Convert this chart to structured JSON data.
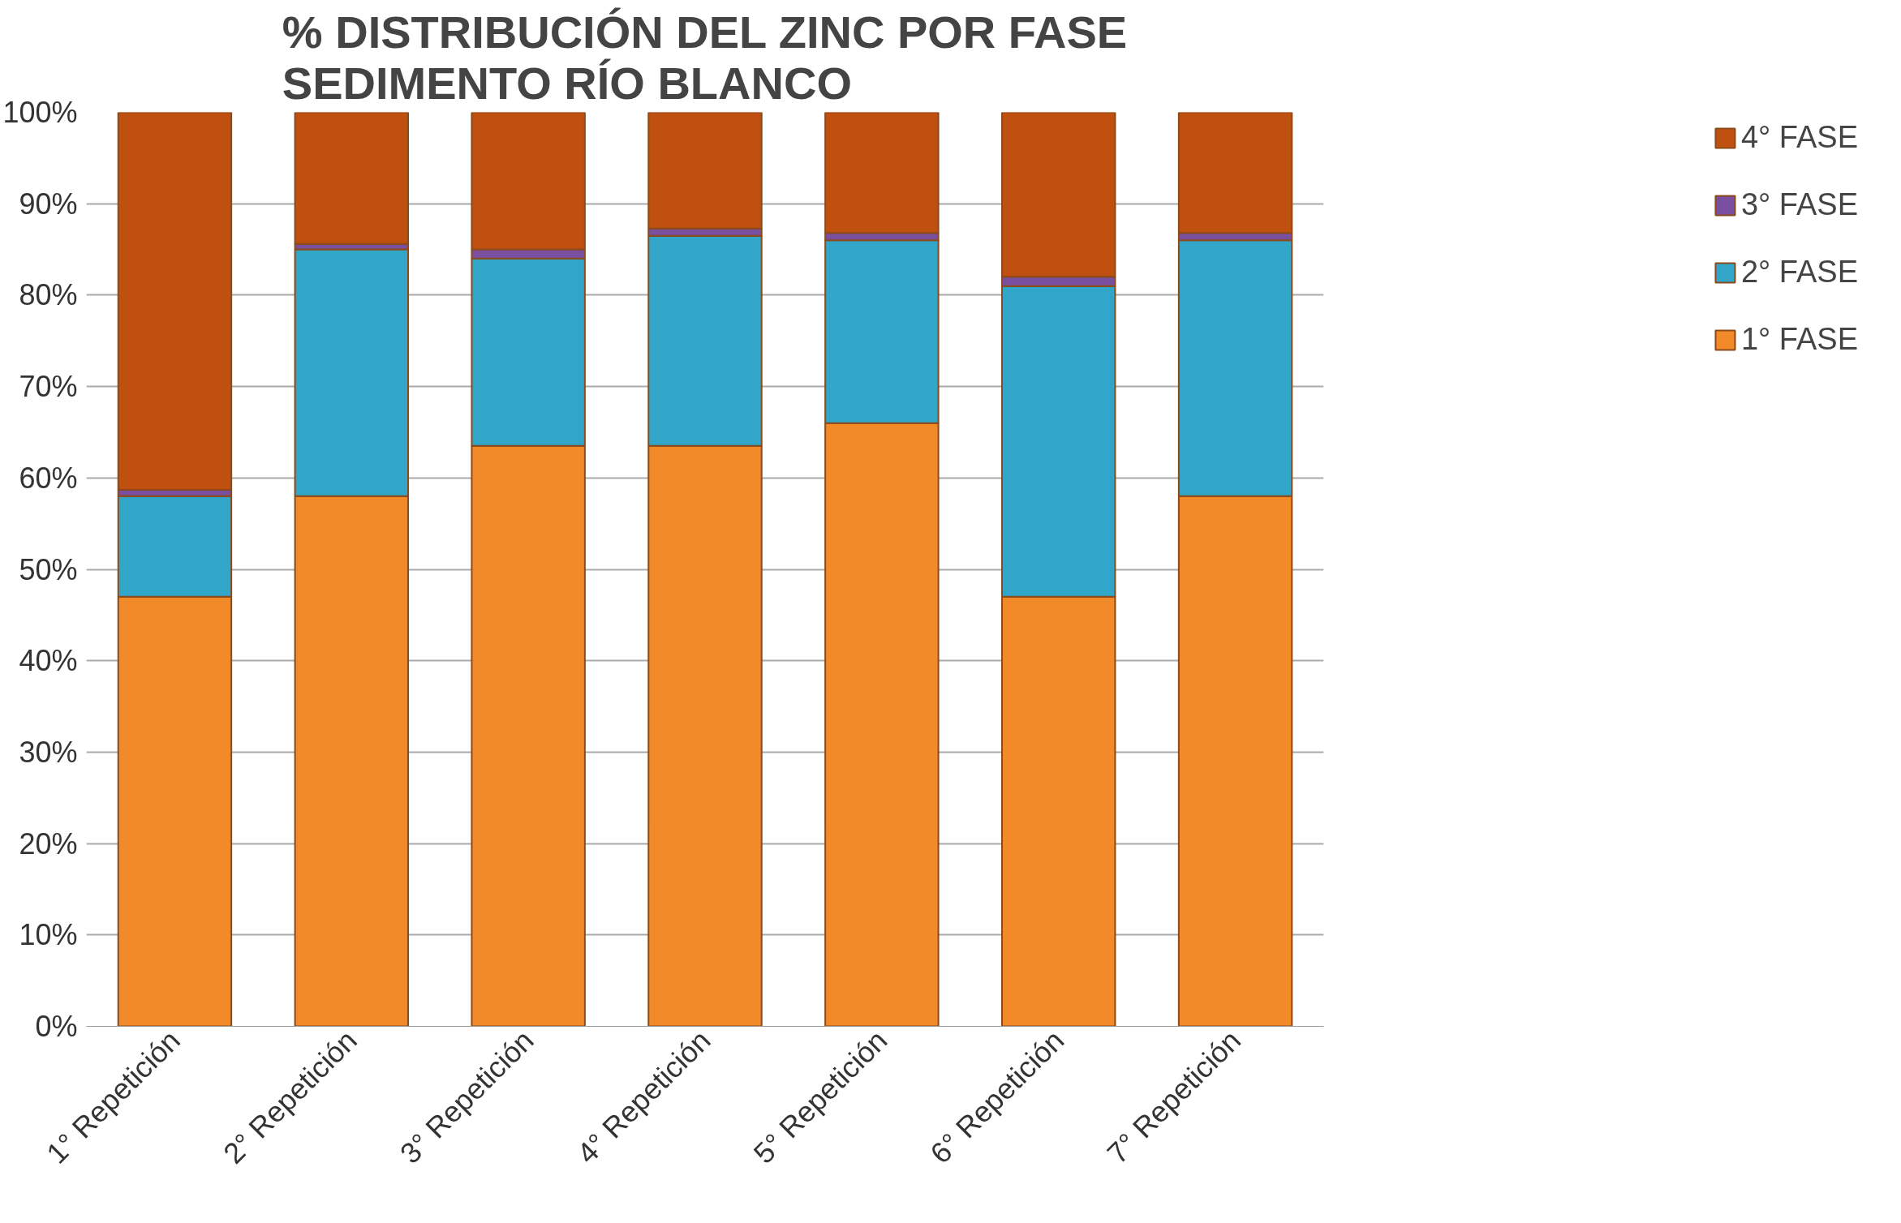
{
  "chart_data": {
    "type": "bar",
    "stacked": true,
    "title": "% DISTRIBUCIÓN DEL ZINC POR FASE\nSEDIMENTO RÍO BLANCO",
    "categories": [
      "1° Repetición",
      "2° Repetición",
      "3° Repetición",
      "4° Repetición",
      "5° Repetición",
      "6° Repetición",
      "7° Repetición"
    ],
    "series": [
      {
        "name": "1° FASE",
        "color": "#f28a2a",
        "values": [
          47,
          58,
          63.5,
          63.5,
          66,
          47,
          58
        ]
      },
      {
        "name": "2° FASE",
        "color": "#31a6c8",
        "values": [
          11,
          27,
          20.5,
          23,
          20,
          34,
          28
        ]
      },
      {
        "name": "3° FASE",
        "color": "#7b4fa0",
        "values": [
          0.7,
          0.6,
          1,
          0.8,
          0.8,
          1,
          0.8
        ]
      },
      {
        "name": "4° FASE",
        "color": "#c0500f",
        "values": [
          41.3,
          14.4,
          15,
          12.7,
          13.2,
          18,
          13.2
        ]
      }
    ],
    "ylim": [
      0,
      100
    ],
    "yticks": [
      {
        "value": 0,
        "label": "0%"
      },
      {
        "value": 10,
        "label": "10%"
      },
      {
        "value": 20,
        "label": "20%"
      },
      {
        "value": 30,
        "label": "30%"
      },
      {
        "value": 40,
        "label": "40%"
      },
      {
        "value": 50,
        "label": "50%"
      },
      {
        "value": 60,
        "label": "60%"
      },
      {
        "value": 70,
        "label": "70%"
      },
      {
        "value": 80,
        "label": "80%"
      },
      {
        "value": 90,
        "label": "90%"
      },
      {
        "value": 100,
        "label": "100%"
      }
    ],
    "grid": "y",
    "legend": "right"
  }
}
